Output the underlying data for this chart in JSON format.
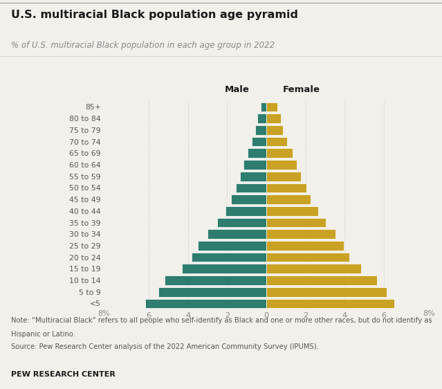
{
  "title": "U.S. multiracial Black population age pyramid",
  "subtitle": "% of U.S. multiracial Black population in each age group in 2022",
  "age_groups_bottom_to_top": [
    "<5",
    "5 to 9",
    "10 to 14",
    "15 to 19",
    "20 to 24",
    "25 to 29",
    "30 to 34",
    "35 to 39",
    "40 to 44",
    "45 to 49",
    "50 to 54",
    "55 to 59",
    "60 to 64",
    "65 to 69",
    "70 to 74",
    "75 to 79",
    "80 to 84",
    "85+"
  ],
  "male_bottom_to_top": [
    6.2,
    5.5,
    5.2,
    4.3,
    3.8,
    3.5,
    3.0,
    2.5,
    2.1,
    1.8,
    1.55,
    1.35,
    1.15,
    0.95,
    0.75,
    0.55,
    0.45,
    0.3
  ],
  "female_bottom_to_top": [
    6.55,
    6.15,
    5.65,
    4.85,
    4.25,
    3.95,
    3.55,
    3.05,
    2.65,
    2.25,
    2.05,
    1.75,
    1.55,
    1.35,
    1.05,
    0.85,
    0.75,
    0.55
  ],
  "male_color": "#2e7d6e",
  "female_color": "#c9a224",
  "bg_color": "#f2f0eb",
  "text_dark": "#1a1a1a",
  "text_mid": "#555555",
  "text_light": "#888888",
  "grid_color": "#bbbbbb",
  "note_line1": "Note: “Multiracial Black” refers to all people who self-identify as Black and one or more other races, but do not identify as",
  "note_line2": "Hispanic or Latino.",
  "note_line3": "Source: Pew Research Center analysis of the 2022 American Community Survey (IPUMS).",
  "footer": "PEW RESEARCH CENTER",
  "male_label": "Male",
  "female_label": "Female",
  "xlim": 8.3,
  "xtick_vals": [
    -6,
    -4,
    -2,
    0,
    2,
    4,
    6
  ],
  "xtick_labels": [
    "6",
    "4",
    "2",
    "0",
    "2",
    "4",
    "6"
  ]
}
